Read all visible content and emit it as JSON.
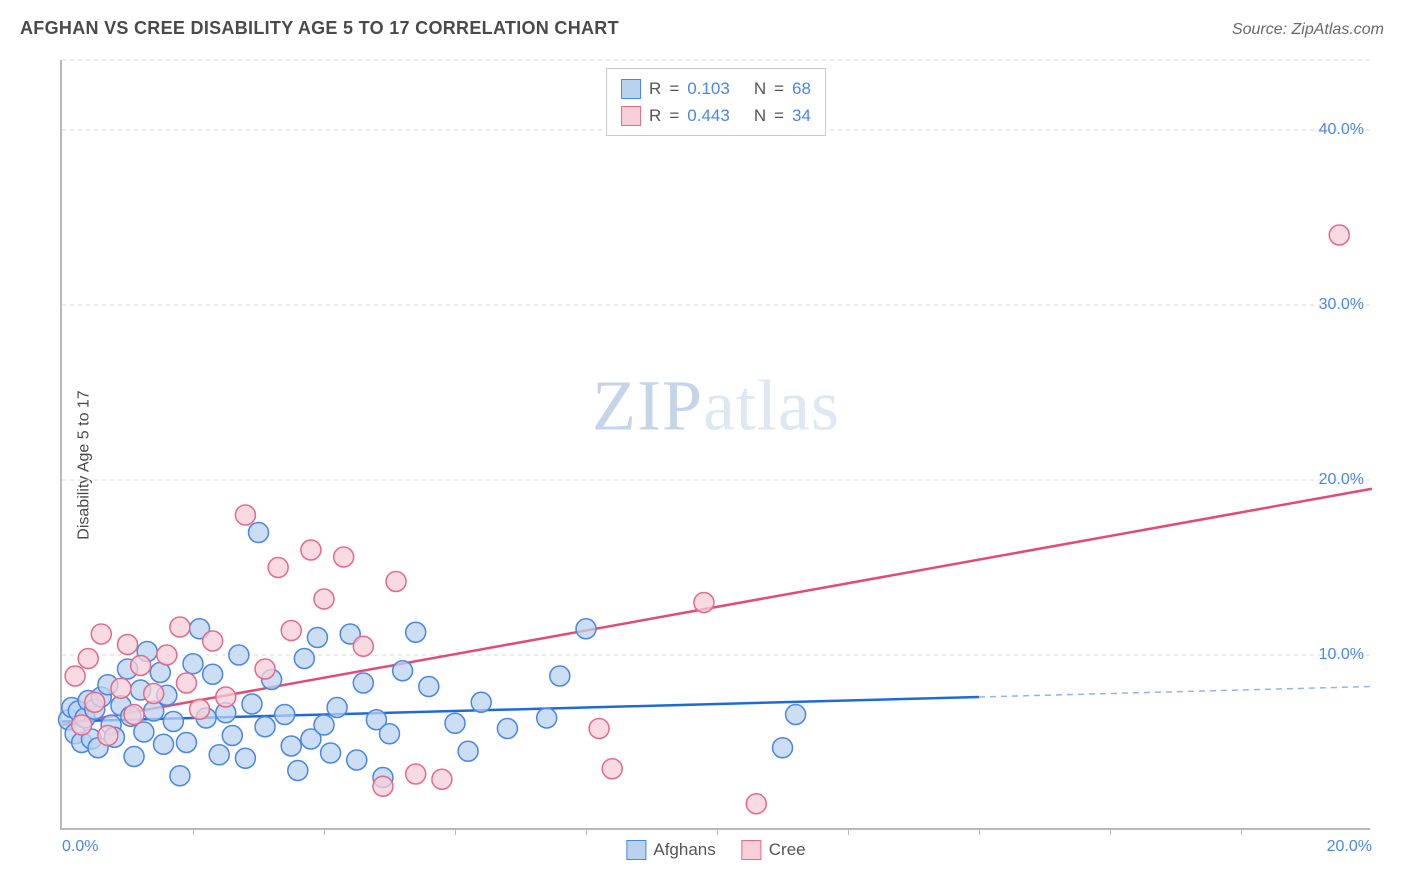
{
  "header": {
    "title": "AFGHAN VS CREE DISABILITY AGE 5 TO 17 CORRELATION CHART",
    "source": "Source: ZipAtlas.com"
  },
  "chart": {
    "type": "scatter",
    "ylabel": "Disability Age 5 to 17",
    "xlim": [
      0,
      20
    ],
    "ylim": [
      0,
      44
    ],
    "y_gridlines": [
      10,
      20,
      30,
      40,
      44
    ],
    "y_tick_labels": {
      "10": "10.0%",
      "20": "20.0%",
      "30": "30.0%",
      "40": "40.0%"
    },
    "x_ticks": [
      2,
      4,
      6,
      8,
      10,
      12,
      14,
      16,
      18
    ],
    "x_tick_labels": {
      "start": "0.0%",
      "end": "20.0%"
    },
    "grid_color": "#d8d8d8",
    "axis_color": "#b9b9b9",
    "background_color": "#ffffff",
    "tick_label_color": "#4a86e8",
    "marker_radius": 10,
    "marker_stroke_width": 1.5,
    "line_width": 2.5,
    "watermark": {
      "text_bold": "ZIP",
      "text_light": "atlas"
    },
    "series": [
      {
        "name": "Afghans",
        "fill": "#b9d3ef",
        "stroke": "#4a86e8",
        "line_color": "#1f6bd6",
        "dash_color": "#8fb5ea",
        "R": "0.103",
        "N": "68",
        "trend": {
          "x0": 0,
          "y0": 6.2,
          "x_solid_end": 14,
          "y_solid_end": 7.6,
          "x_dash_end": 20,
          "y_dash_end": 8.2
        },
        "points": [
          [
            0.1,
            6.3
          ],
          [
            0.15,
            7.0
          ],
          [
            0.2,
            5.5
          ],
          [
            0.25,
            6.8
          ],
          [
            0.3,
            5.0
          ],
          [
            0.35,
            6.4
          ],
          [
            0.4,
            7.4
          ],
          [
            0.45,
            5.2
          ],
          [
            0.5,
            6.9
          ],
          [
            0.55,
            4.7
          ],
          [
            0.6,
            7.6
          ],
          [
            0.7,
            8.3
          ],
          [
            0.75,
            6.0
          ],
          [
            0.8,
            5.3
          ],
          [
            0.9,
            7.1
          ],
          [
            1.0,
            9.2
          ],
          [
            1.05,
            6.5
          ],
          [
            1.1,
            4.2
          ],
          [
            1.2,
            8.0
          ],
          [
            1.25,
            5.6
          ],
          [
            1.3,
            10.2
          ],
          [
            1.4,
            6.8
          ],
          [
            1.5,
            9.0
          ],
          [
            1.55,
            4.9
          ],
          [
            1.6,
            7.7
          ],
          [
            1.7,
            6.2
          ],
          [
            1.8,
            3.1
          ],
          [
            1.9,
            5.0
          ],
          [
            2.0,
            9.5
          ],
          [
            2.1,
            11.5
          ],
          [
            2.2,
            6.4
          ],
          [
            2.3,
            8.9
          ],
          [
            2.4,
            4.3
          ],
          [
            2.5,
            6.7
          ],
          [
            2.6,
            5.4
          ],
          [
            2.7,
            10.0
          ],
          [
            2.8,
            4.1
          ],
          [
            2.9,
            7.2
          ],
          [
            3.0,
            17.0
          ],
          [
            3.1,
            5.9
          ],
          [
            3.2,
            8.6
          ],
          [
            3.4,
            6.6
          ],
          [
            3.5,
            4.8
          ],
          [
            3.6,
            3.4
          ],
          [
            3.7,
            9.8
          ],
          [
            3.8,
            5.2
          ],
          [
            3.9,
            11.0
          ],
          [
            4.0,
            6.0
          ],
          [
            4.1,
            4.4
          ],
          [
            4.2,
            7.0
          ],
          [
            4.4,
            11.2
          ],
          [
            4.5,
            4.0
          ],
          [
            4.6,
            8.4
          ],
          [
            4.8,
            6.3
          ],
          [
            4.9,
            3.0
          ],
          [
            5.0,
            5.5
          ],
          [
            5.2,
            9.1
          ],
          [
            5.4,
            11.3
          ],
          [
            5.6,
            8.2
          ],
          [
            6.0,
            6.1
          ],
          [
            6.2,
            4.5
          ],
          [
            6.4,
            7.3
          ],
          [
            6.8,
            5.8
          ],
          [
            7.4,
            6.4
          ],
          [
            7.6,
            8.8
          ],
          [
            8.0,
            11.5
          ],
          [
            11.0,
            4.7
          ],
          [
            11.2,
            6.6
          ]
        ]
      },
      {
        "name": "Cree",
        "fill": "#f6cfd8",
        "stroke": "#e56a8a",
        "line_color": "#e14b76",
        "R": "0.443",
        "N": "34",
        "trend": {
          "x0": 0,
          "y0": 6.0,
          "x_solid_end": 20,
          "y_solid_end": 19.5
        },
        "points": [
          [
            0.2,
            8.8
          ],
          [
            0.3,
            6.0
          ],
          [
            0.4,
            9.8
          ],
          [
            0.5,
            7.3
          ],
          [
            0.6,
            11.2
          ],
          [
            0.7,
            5.4
          ],
          [
            0.9,
            8.1
          ],
          [
            1.0,
            10.6
          ],
          [
            1.1,
            6.6
          ],
          [
            1.2,
            9.4
          ],
          [
            1.4,
            7.8
          ],
          [
            1.6,
            10.0
          ],
          [
            1.8,
            11.6
          ],
          [
            1.9,
            8.4
          ],
          [
            2.1,
            6.9
          ],
          [
            2.3,
            10.8
          ],
          [
            2.5,
            7.6
          ],
          [
            2.8,
            18.0
          ],
          [
            3.1,
            9.2
          ],
          [
            3.3,
            15.0
          ],
          [
            3.5,
            11.4
          ],
          [
            3.8,
            16.0
          ],
          [
            4.0,
            13.2
          ],
          [
            4.3,
            15.6
          ],
          [
            4.6,
            10.5
          ],
          [
            4.9,
            2.5
          ],
          [
            5.1,
            14.2
          ],
          [
            5.4,
            3.2
          ],
          [
            8.2,
            5.8
          ],
          [
            8.4,
            3.5
          ],
          [
            9.8,
            13.0
          ],
          [
            10.6,
            1.5
          ],
          [
            19.5,
            34.0
          ],
          [
            5.8,
            2.9
          ]
        ]
      }
    ],
    "legend_top": {
      "label_R": "R",
      "label_N": "N",
      "eq": "="
    },
    "legend_bottom": {
      "items": [
        "Afghans",
        "Cree"
      ]
    }
  }
}
